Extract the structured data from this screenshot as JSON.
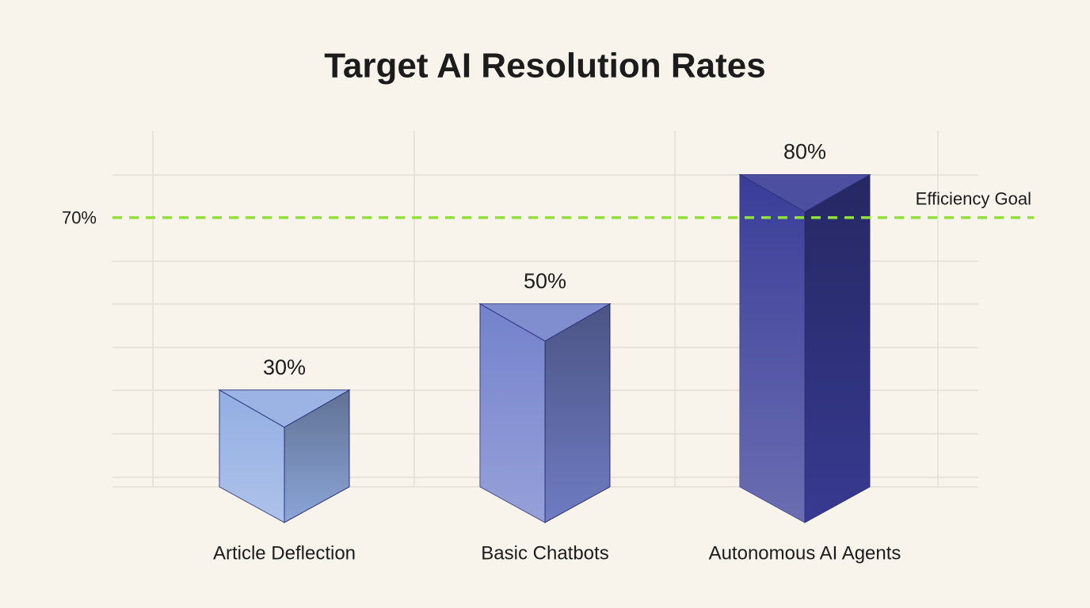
{
  "chart_data": {
    "type": "bar",
    "title": "Target AI Resolution Rates",
    "categories": [
      "Article Deflection",
      "Basic Chatbots",
      "Autonomous AI Agents"
    ],
    "values": [
      30,
      50,
      80
    ],
    "value_labels": [
      "30%",
      "50%",
      "80%"
    ],
    "colors": [
      "#93aee3",
      "#7482cc",
      "#3a3d98"
    ],
    "ylim": [
      0,
      90
    ],
    "reference_line": {
      "value": 70,
      "value_label": "70%",
      "label": "Efficiency Goal",
      "color": "#8ee23a"
    }
  }
}
